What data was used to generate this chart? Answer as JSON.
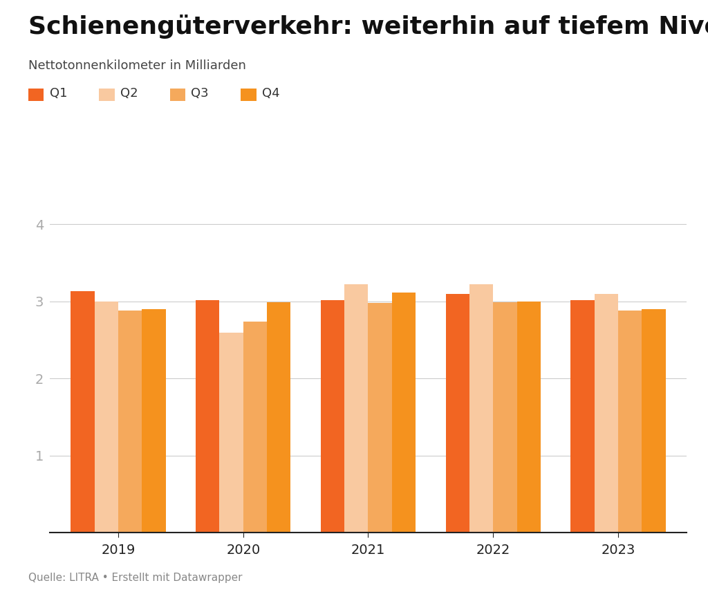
{
  "title": "Schienengüterverkehr: weiterhin auf tiefem Niveau",
  "subtitle": "Nettotonnenkilometer in Milliarden",
  "source": "Quelle: LITRA • Erstellt mit Datawrapper",
  "years": [
    2019,
    2020,
    2021,
    2022,
    2023
  ],
  "quarters": [
    "Q1",
    "Q2",
    "Q3",
    "Q4"
  ],
  "data": {
    "Q1": [
      3.13,
      3.02,
      3.02,
      3.1,
      3.02
    ],
    "Q2": [
      3.0,
      2.6,
      3.22,
      3.22,
      3.1
    ],
    "Q3": [
      2.88,
      2.74,
      2.98,
      2.99,
      2.88
    ],
    "Q4": [
      2.9,
      2.99,
      3.12,
      3.0,
      2.9
    ]
  },
  "colors": {
    "Q1": "#F26522",
    "Q2": "#F9C9A0",
    "Q3": "#F5A95C",
    "Q4": "#F5921E"
  },
  "ylim": [
    0,
    4.3
  ],
  "yticks": [
    1,
    2,
    3,
    4
  ],
  "bar_width": 0.19,
  "background_color": "#ffffff",
  "grid_color": "#cccccc",
  "axis_color": "#222222",
  "title_fontsize": 26,
  "subtitle_fontsize": 13,
  "legend_fontsize": 13,
  "tick_fontsize": 14,
  "source_fontsize": 11
}
